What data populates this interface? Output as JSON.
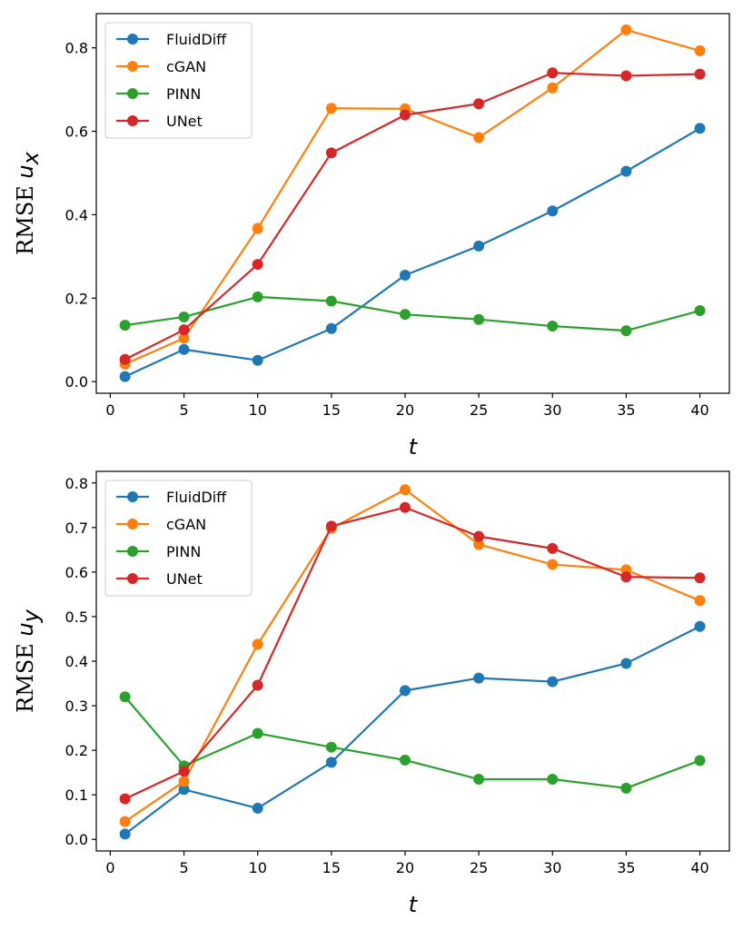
{
  "chart_data": [
    {
      "type": "line",
      "ylabel_prefix": "RMSE ",
      "ylabel_var": "u",
      "ylabel_sub": "x",
      "xlabel": "t",
      "x": [
        1,
        5,
        10,
        15,
        20,
        25,
        30,
        35,
        40
      ],
      "xlim": [
        -0.95,
        42
      ],
      "ylim": [
        -0.028,
        0.882
      ],
      "xticks": [
        0,
        5,
        10,
        15,
        20,
        25,
        30,
        35,
        40
      ],
      "yticks": [
        "0.0",
        "0.2",
        "0.4",
        "0.6",
        "0.8"
      ],
      "legend_position": "upper-left",
      "series": [
        {
          "name": "FluidDiff",
          "color": "#1f77b4",
          "values": [
            0.012,
            0.077,
            0.051,
            0.127,
            0.255,
            0.325,
            0.409,
            0.504,
            0.607
          ]
        },
        {
          "name": "cGAN",
          "color": "#ff7f0e",
          "values": [
            0.042,
            0.104,
            0.367,
            0.655,
            0.654,
            0.585,
            0.704,
            0.843,
            0.793
          ]
        },
        {
          "name": "PINN",
          "color": "#2ca02c",
          "values": [
            0.135,
            0.155,
            0.203,
            0.193,
            0.161,
            0.149,
            0.133,
            0.122,
            0.17
          ]
        },
        {
          "name": "UNet",
          "color": "#d62728",
          "values": [
            0.053,
            0.124,
            0.281,
            0.548,
            0.639,
            0.666,
            0.74,
            0.733,
            0.737
          ]
        }
      ]
    },
    {
      "type": "line",
      "ylabel_prefix": "RMSE ",
      "ylabel_var": "u",
      "ylabel_sub": "y",
      "xlabel": "t",
      "x": [
        1,
        5,
        10,
        15,
        20,
        25,
        30,
        35,
        40
      ],
      "xlim": [
        -0.95,
        42
      ],
      "ylim": [
        -0.026,
        0.826
      ],
      "xticks": [
        0,
        5,
        10,
        15,
        20,
        25,
        30,
        35,
        40
      ],
      "yticks": [
        "0.0",
        "0.1",
        "0.2",
        "0.3",
        "0.4",
        "0.5",
        "0.6",
        "0.7",
        "0.8"
      ],
      "legend_position": "upper-left",
      "series": [
        {
          "name": "FluidDiff",
          "color": "#1f77b4",
          "values": [
            0.012,
            0.112,
            0.07,
            0.173,
            0.334,
            0.362,
            0.354,
            0.395,
            0.478
          ]
        },
        {
          "name": "cGAN",
          "color": "#ff7f0e",
          "values": [
            0.04,
            0.13,
            0.438,
            0.698,
            0.785,
            0.662,
            0.617,
            0.605,
            0.536
          ]
        },
        {
          "name": "PINN",
          "color": "#2ca02c",
          "values": [
            0.32,
            0.165,
            0.238,
            0.207,
            0.178,
            0.135,
            0.135,
            0.115,
            0.177
          ]
        },
        {
          "name": "UNet",
          "color": "#d62728",
          "values": [
            0.091,
            0.153,
            0.346,
            0.703,
            0.745,
            0.68,
            0.653,
            0.589,
            0.587
          ]
        }
      ]
    }
  ]
}
